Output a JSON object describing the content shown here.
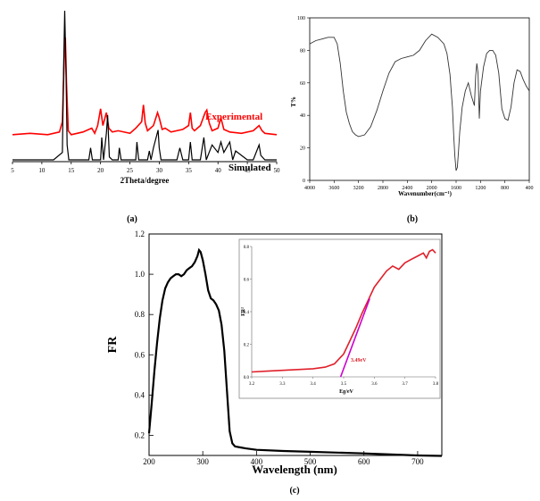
{
  "panels": {
    "a": {
      "label": "(a)"
    },
    "b": {
      "label": "(b)"
    },
    "c": {
      "label": "(c)"
    }
  },
  "chart_data": [
    {
      "panel": "a",
      "type": "line",
      "xlabel": "2Theta/degree",
      "ylabel": "",
      "xlim": [
        5,
        50
      ],
      "xticks": [
        5,
        10,
        15,
        20,
        25,
        30,
        35,
        40,
        45,
        50
      ],
      "series": [
        {
          "name": "Experimental",
          "color": "#ff0000",
          "x": [
            5,
            8,
            11,
            13,
            13.5,
            13.8,
            14.0,
            14.2,
            14.5,
            15,
            17,
            18.5,
            19,
            19.5,
            20,
            20.4,
            21,
            21.4,
            22,
            23,
            25,
            26,
            27,
            27.3,
            27.6,
            28,
            29,
            29.7,
            30,
            30.5,
            31,
            32,
            34,
            35,
            35.3,
            35.6,
            36,
            37,
            37.8,
            38.1,
            38.5,
            39,
            40,
            40.5,
            41,
            42,
            44,
            46,
            47,
            47.5,
            48,
            50
          ],
          "y": [
            0.05,
            0.06,
            0.05,
            0.07,
            0.15,
            0.62,
            0.8,
            0.45,
            0.08,
            0.05,
            0.07,
            0.1,
            0.06,
            0.12,
            0.25,
            0.12,
            0.22,
            0.1,
            0.07,
            0.08,
            0.06,
            0.1,
            0.15,
            0.28,
            0.14,
            0.08,
            0.12,
            0.22,
            0.18,
            0.09,
            0.1,
            0.07,
            0.09,
            0.12,
            0.22,
            0.1,
            0.08,
            0.12,
            0.22,
            0.24,
            0.14,
            0.08,
            0.1,
            0.18,
            0.09,
            0.07,
            0.06,
            0.08,
            0.12,
            0.08,
            0.06,
            0.05
          ]
        },
        {
          "name": "Simulated",
          "color": "#000000",
          "x": [
            5,
            10,
            12,
            13.5,
            13.7,
            13.9,
            14.1,
            14.3,
            14.6,
            15,
            18,
            18.3,
            18.6,
            20,
            20.2,
            20.5,
            21,
            21.2,
            21.5,
            22,
            23,
            23.2,
            23.5,
            25,
            26,
            26.2,
            26.5,
            28,
            28.3,
            28.6,
            29,
            29.8,
            30,
            30.3,
            31,
            33,
            33.5,
            34,
            35,
            35.3,
            35.6,
            37,
            37.6,
            38,
            39,
            40,
            40.5,
            41,
            42,
            42.5,
            43,
            45,
            46,
            47,
            47.3,
            48,
            50
          ],
          "y": [
            0,
            0,
            0,
            0.05,
            0.6,
            1.0,
            0.6,
            0.1,
            0,
            0,
            0,
            0.08,
            0,
            0,
            0.15,
            0,
            0.18,
            0.3,
            0.02,
            0,
            0,
            0.08,
            0,
            0,
            0,
            0.12,
            0,
            0,
            0.06,
            0,
            0.08,
            0.2,
            0.08,
            0,
            0,
            0,
            0.08,
            0,
            0,
            0.12,
            0,
            0,
            0.15,
            0,
            0.1,
            0.05,
            0.12,
            0.05,
            0.12,
            0,
            0.06,
            0,
            0,
            0.1,
            0.03,
            0,
            0
          ]
        }
      ]
    },
    {
      "panel": "b",
      "type": "line",
      "xlabel": "Wavenumber(cm⁻¹)",
      "ylabel": "T%",
      "xlim": [
        4000,
        400
      ],
      "ylim": [
        0,
        100
      ],
      "xticks": [
        4000,
        3600,
        3200,
        2800,
        2400,
        2000,
        1600,
        1200,
        800,
        400
      ],
      "yticks": [
        0,
        20,
        40,
        60,
        80,
        100
      ],
      "series": [
        {
          "name": "",
          "x": [
            4000,
            3900,
            3800,
            3700,
            3600,
            3550,
            3500,
            3450,
            3400,
            3350,
            3300,
            3250,
            3200,
            3100,
            3000,
            2900,
            2800,
            2700,
            2600,
            2500,
            2400,
            2300,
            2200,
            2100,
            2000,
            1900,
            1800,
            1750,
            1700,
            1680,
            1660,
            1640,
            1620,
            1600,
            1580,
            1560,
            1540,
            1500,
            1450,
            1400,
            1350,
            1300,
            1280,
            1260,
            1240,
            1220,
            1200,
            1150,
            1100,
            1050,
            1000,
            950,
            900,
            850,
            800,
            750,
            700,
            650,
            600,
            550,
            500,
            450,
            400
          ],
          "y": [
            84,
            86,
            87,
            88,
            88,
            84,
            72,
            55,
            42,
            35,
            30,
            28,
            27,
            28,
            33,
            43,
            55,
            66,
            73,
            75,
            76,
            77,
            80,
            86,
            90,
            88,
            84,
            78,
            65,
            55,
            45,
            28,
            15,
            6,
            8,
            18,
            30,
            45,
            55,
            60,
            52,
            46,
            64,
            72,
            66,
            38,
            55,
            70,
            78,
            80,
            80,
            77,
            66,
            44,
            38,
            37,
            45,
            60,
            68,
            67,
            62,
            58,
            55
          ]
        }
      ]
    },
    {
      "panel": "c",
      "type": "line",
      "xlabel": "Wavelength (nm)",
      "ylabel": "FR",
      "xlim": [
        200,
        745
      ],
      "ylim": [
        0.1,
        1.2
      ],
      "xticks": [
        200,
        300,
        400,
        500,
        600,
        700
      ],
      "yticks": [
        0.2,
        0.4,
        0.6,
        0.8,
        1.0,
        1.2
      ],
      "series": [
        {
          "name": "",
          "x": [
            200,
            205,
            210,
            215,
            220,
            225,
            230,
            235,
            240,
            245,
            250,
            255,
            260,
            265,
            270,
            275,
            280,
            285,
            290,
            293,
            296,
            300,
            305,
            310,
            315,
            320,
            325,
            330,
            335,
            340,
            345,
            350,
            355,
            360,
            370,
            380,
            400,
            450,
            500,
            550,
            600,
            650,
            700,
            745
          ],
          "y": [
            0.21,
            0.36,
            0.52,
            0.66,
            0.78,
            0.87,
            0.93,
            0.96,
            0.98,
            0.99,
            1.0,
            1.0,
            0.99,
            1.0,
            1.02,
            1.03,
            1.04,
            1.06,
            1.09,
            1.12,
            1.11,
            1.07,
            1.0,
            0.92,
            0.88,
            0.87,
            0.85,
            0.82,
            0.75,
            0.62,
            0.42,
            0.22,
            0.16,
            0.145,
            0.14,
            0.135,
            0.128,
            0.122,
            0.118,
            0.114,
            0.11,
            0.105,
            0.1,
            0.098
          ]
        }
      ]
    },
    {
      "panel": "c-inset",
      "type": "line",
      "xlabel": "Eg/eV",
      "ylabel": "FR²",
      "xlim": [
        3.2,
        3.8
      ],
      "ylim": [
        0,
        0.8
      ],
      "xticks": [
        3.2,
        3.3,
        3.4,
        3.5,
        3.6,
        3.7,
        3.8
      ],
      "yticks": [
        0.0,
        0.2,
        0.4,
        0.6,
        0.8
      ],
      "annotation": "3.49eV",
      "series": [
        {
          "name": "",
          "color": "#e0202a",
          "x": [
            3.2,
            3.25,
            3.3,
            3.35,
            3.4,
            3.44,
            3.47,
            3.5,
            3.52,
            3.54,
            3.56,
            3.58,
            3.6,
            3.62,
            3.64,
            3.66,
            3.68,
            3.7,
            3.72,
            3.74,
            3.76,
            3.77,
            3.78,
            3.79,
            3.8
          ],
          "y": [
            0.03,
            0.035,
            0.04,
            0.045,
            0.05,
            0.06,
            0.08,
            0.14,
            0.22,
            0.3,
            0.39,
            0.47,
            0.55,
            0.6,
            0.65,
            0.68,
            0.66,
            0.7,
            0.72,
            0.74,
            0.76,
            0.73,
            0.77,
            0.78,
            0.76
          ]
        },
        {
          "name": "",
          "color": "#cc00cc",
          "x": [
            3.49,
            3.585
          ],
          "y": [
            0.0,
            0.48
          ]
        }
      ]
    }
  ]
}
